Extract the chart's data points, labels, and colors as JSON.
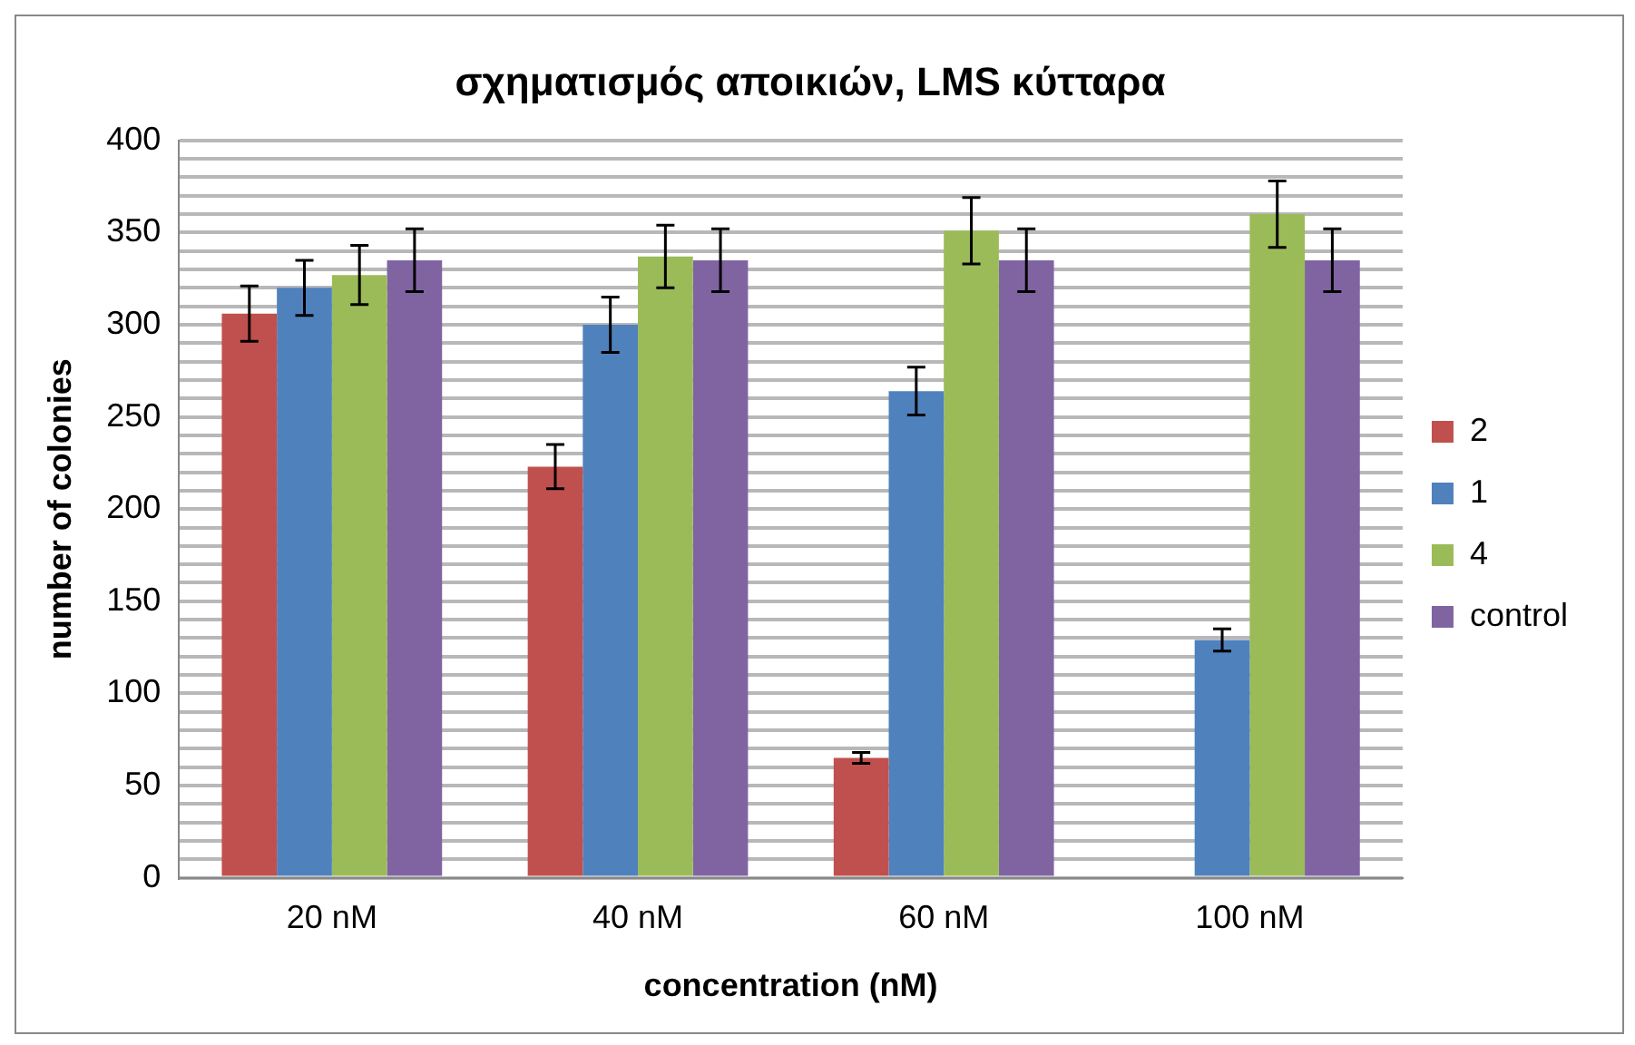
{
  "chart_data": {
    "type": "bar",
    "title": "σχηματισμός αποικιών, LMS κύτταρα",
    "xlabel": "concentration (nM)",
    "ylabel": "number of colonies",
    "categories": [
      "20 nM",
      "40 nM",
      "60 nM",
      "100 nM"
    ],
    "series": [
      {
        "name": "2",
        "color": "#c0504d",
        "values": [
          306,
          223,
          65,
          0
        ],
        "errors": [
          15,
          12,
          3,
          null
        ]
      },
      {
        "name": "1",
        "color": "#4f81bd",
        "values": [
          320,
          300,
          264,
          129
        ],
        "errors": [
          15,
          15,
          13,
          6
        ]
      },
      {
        "name": "4",
        "color": "#9bbb59",
        "values": [
          327,
          337,
          351,
          360
        ],
        "errors": [
          16,
          17,
          18,
          18
        ]
      },
      {
        "name": "control",
        "color": "#8064a2",
        "values": [
          335,
          335,
          335,
          335
        ],
        "errors": [
          17,
          17,
          17,
          17
        ]
      }
    ],
    "ylim": [
      0,
      400
    ],
    "yticks": [
      0,
      {
        "value": 10,
        "label": null
      },
      {
        "value": 20,
        "label": null
      },
      {
        "value": 30,
        "label": null
      },
      {
        "value": 40,
        "label": null
      },
      50,
      {
        "value": 60,
        "label": null
      },
      {
        "value": 70,
        "label": null
      },
      {
        "value": 80,
        "label": null
      },
      {
        "value": 90,
        "label": null
      },
      100,
      {
        "value": 110,
        "label": null
      },
      {
        "value": 120,
        "label": null
      },
      {
        "value": 130,
        "label": null
      },
      {
        "value": 140,
        "label": null
      },
      150,
      {
        "value": 160,
        "label": null
      },
      {
        "value": 170,
        "label": null
      },
      {
        "value": 180,
        "label": null
      },
      {
        "value": 190,
        "label": null
      },
      200,
      {
        "value": 210,
        "label": null
      },
      {
        "value": 220,
        "label": null
      },
      {
        "value": 230,
        "label": null
      },
      {
        "value": 240,
        "label": null
      },
      250,
      {
        "value": 260,
        "label": null
      },
      {
        "value": 270,
        "label": null
      },
      {
        "value": 280,
        "label": null
      },
      {
        "value": 290,
        "label": null
      },
      300,
      {
        "value": 310,
        "label": null
      },
      {
        "value": 320,
        "label": null
      },
      {
        "value": 330,
        "label": null
      },
      {
        "value": 340,
        "label": null
      },
      350,
      {
        "value": 360,
        "label": null
      },
      {
        "value": 370,
        "label": null
      },
      {
        "value": 380,
        "label": null
      },
      {
        "value": 390,
        "label": null
      },
      400
    ],
    "grid": "y",
    "legend": "right"
  }
}
